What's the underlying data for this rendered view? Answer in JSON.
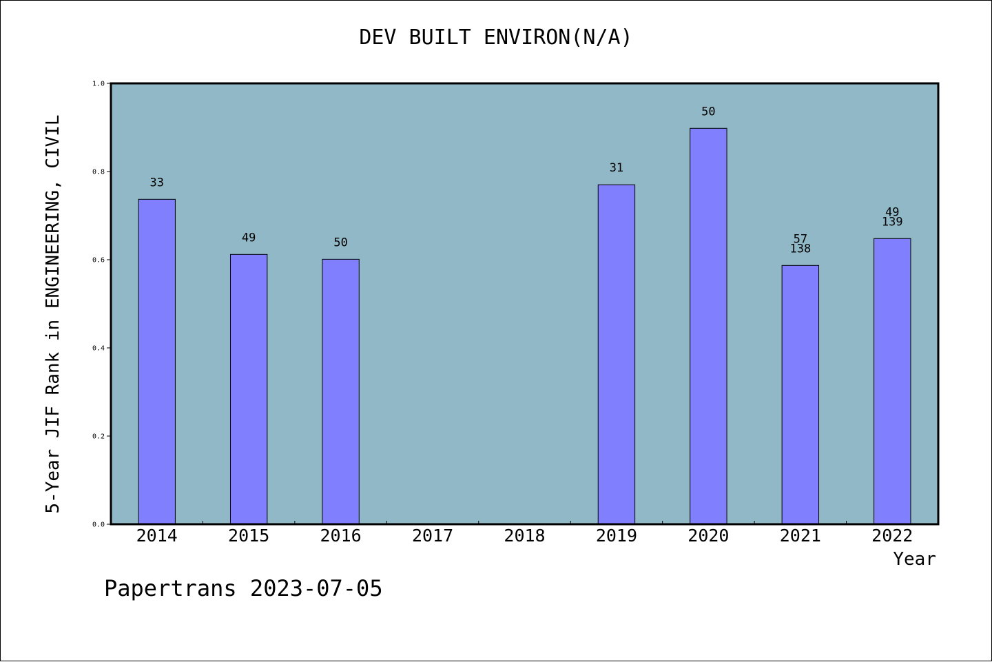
{
  "chart_data": {
    "type": "bar",
    "title": "DEV BUILT ENVIRON(N/A)",
    "xlabel": "Year",
    "ylabel": "5-Year JIF Rank in ENGINEERING, CIVIL",
    "categories": [
      "2014",
      "2015",
      "2016",
      "2017",
      "2018",
      "2019",
      "2020",
      "2021",
      "2022"
    ],
    "values": [
      0.737,
      0.612,
      0.601,
      null,
      null,
      0.77,
      0.898,
      0.587,
      0.648
    ],
    "bar_labels": [
      [
        "33"
      ],
      [
        "49"
      ],
      [
        "50"
      ],
      [],
      [],
      [
        "31"
      ],
      [
        "50"
      ],
      [
        "57",
        "138"
      ],
      [
        "49",
        "139"
      ]
    ],
    "ylim": [
      0,
      1.0
    ],
    "yticks": [
      "0.0",
      "0.2",
      "0.4",
      "0.6",
      "0.8",
      "1.0"
    ],
    "grid": false,
    "colors": {
      "plot_bg": "#90b8c6",
      "bar": "#8080ff"
    }
  },
  "footer": "Papertrans 2023-07-05"
}
